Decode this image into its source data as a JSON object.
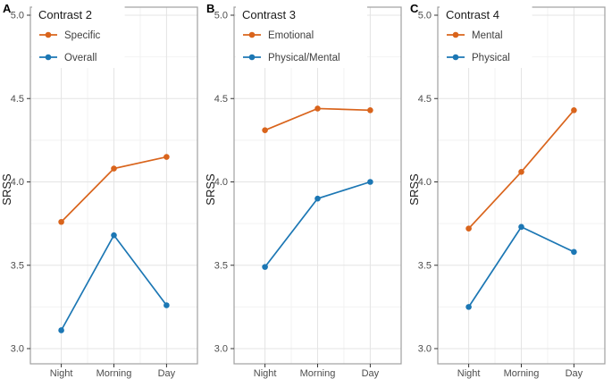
{
  "figure": {
    "background": "#ffffff",
    "y_axis_label": "SRSS",
    "x_categories": [
      "Night",
      "Morning",
      "Day"
    ],
    "y_tick_labels": [
      "5.0",
      "4.5",
      "4.0",
      "3.5",
      "3.0"
    ],
    "colors": {
      "orange_series": "#d9641c",
      "blue_series": "#1c77b4",
      "grid_major": "#e4e4e4",
      "grid_minor": "#f2f2f2",
      "panel_border": "#a0a0a0",
      "tick_mark": "#333333",
      "tick_text": "#4d4d4d",
      "title_text": "#1a1a1a"
    }
  },
  "chart_data": [
    {
      "type": "line",
      "panel_label": "A",
      "title": "Contrast 2",
      "categories": [
        "Night",
        "Morning",
        "Day"
      ],
      "series": [
        {
          "name": "Specific",
          "color": "#d9641c",
          "values": [
            3.76,
            4.08,
            4.15
          ]
        },
        {
          "name": "Overall",
          "color": "#1c77b4",
          "values": [
            3.11,
            3.68,
            3.26
          ]
        }
      ],
      "xlabel": "",
      "ylabel": "SRSS",
      "ylim": [
        3.0,
        5.0
      ],
      "yticks": [
        3.0,
        3.5,
        4.0,
        4.5,
        5.0
      ],
      "grid": true,
      "legend_position": "top-left"
    },
    {
      "type": "line",
      "panel_label": "B",
      "title": "Contrast 3",
      "categories": [
        "Night",
        "Morning",
        "Day"
      ],
      "series": [
        {
          "name": "Emotional",
          "color": "#d9641c",
          "values": [
            4.31,
            4.44,
            4.43
          ]
        },
        {
          "name": "Physical/Mental",
          "color": "#1c77b4",
          "values": [
            3.49,
            3.9,
            4.0
          ]
        }
      ],
      "xlabel": "",
      "ylabel": "SRSS",
      "ylim": [
        3.0,
        5.0
      ],
      "yticks": [
        3.0,
        3.5,
        4.0,
        4.5,
        5.0
      ],
      "grid": true,
      "legend_position": "top-left"
    },
    {
      "type": "line",
      "panel_label": "C",
      "title": "Contrast 4",
      "categories": [
        "Night",
        "Morning",
        "Day"
      ],
      "series": [
        {
          "name": "Mental",
          "color": "#d9641c",
          "values": [
            3.72,
            4.06,
            4.43
          ]
        },
        {
          "name": "Physical",
          "color": "#1c77b4",
          "values": [
            3.25,
            3.73,
            3.58
          ]
        }
      ],
      "xlabel": "",
      "ylabel": "SRSS",
      "ylim": [
        3.0,
        5.0
      ],
      "yticks": [
        3.0,
        3.5,
        4.0,
        4.5,
        5.0
      ],
      "grid": true,
      "legend_position": "top-left"
    }
  ]
}
